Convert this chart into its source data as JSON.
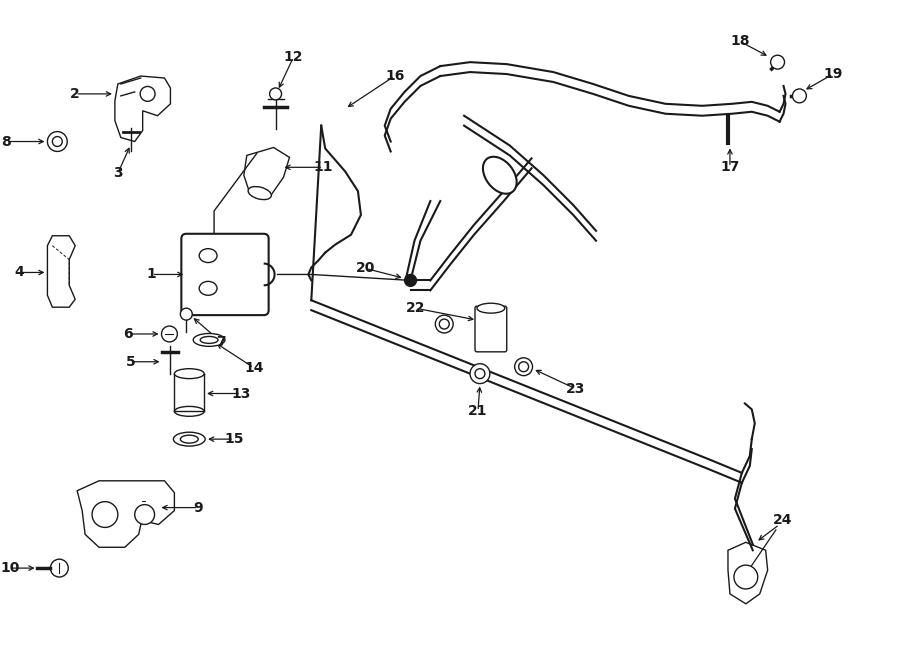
{
  "bg_color": "#ffffff",
  "line_color": "#1a1a1a",
  "fig_width": 9.0,
  "fig_height": 6.62,
  "dpi": 100,
  "xlim": [
    0,
    9
  ],
  "ylim": [
    0,
    6.62
  ]
}
